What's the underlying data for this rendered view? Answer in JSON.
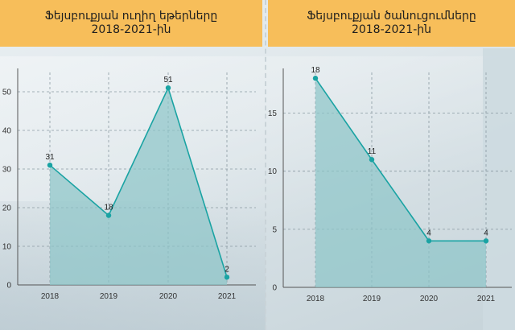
{
  "colors": {
    "header": "#f7be5a",
    "line": "#1aa3a3",
    "fill": "#8cc4c8",
    "grid": "#8a9aa2"
  },
  "chart_data": [
    {
      "type": "area",
      "title_line1": "Ֆեյսբուքյան ուղիղ եթերները",
      "title_line2": "2018-2021-ին",
      "x": [
        "2018",
        "2019",
        "2020",
        "2021"
      ],
      "values": [
        31,
        18,
        51,
        2
      ],
      "ylim": [
        0,
        55
      ],
      "yticks": [
        0,
        10,
        20,
        30,
        40,
        50
      ],
      "grid": true
    },
    {
      "type": "area",
      "title_line1": "Ֆեյսբուքյան ծանուցումները",
      "title_line2": "2018-2021-ին",
      "x": [
        "2018",
        "2019",
        "2020",
        "2021"
      ],
      "values": [
        18,
        11,
        4,
        4
      ],
      "ylim": [
        0,
        18.5
      ],
      "yticks": [
        0,
        5,
        10,
        15
      ],
      "grid": true
    }
  ]
}
